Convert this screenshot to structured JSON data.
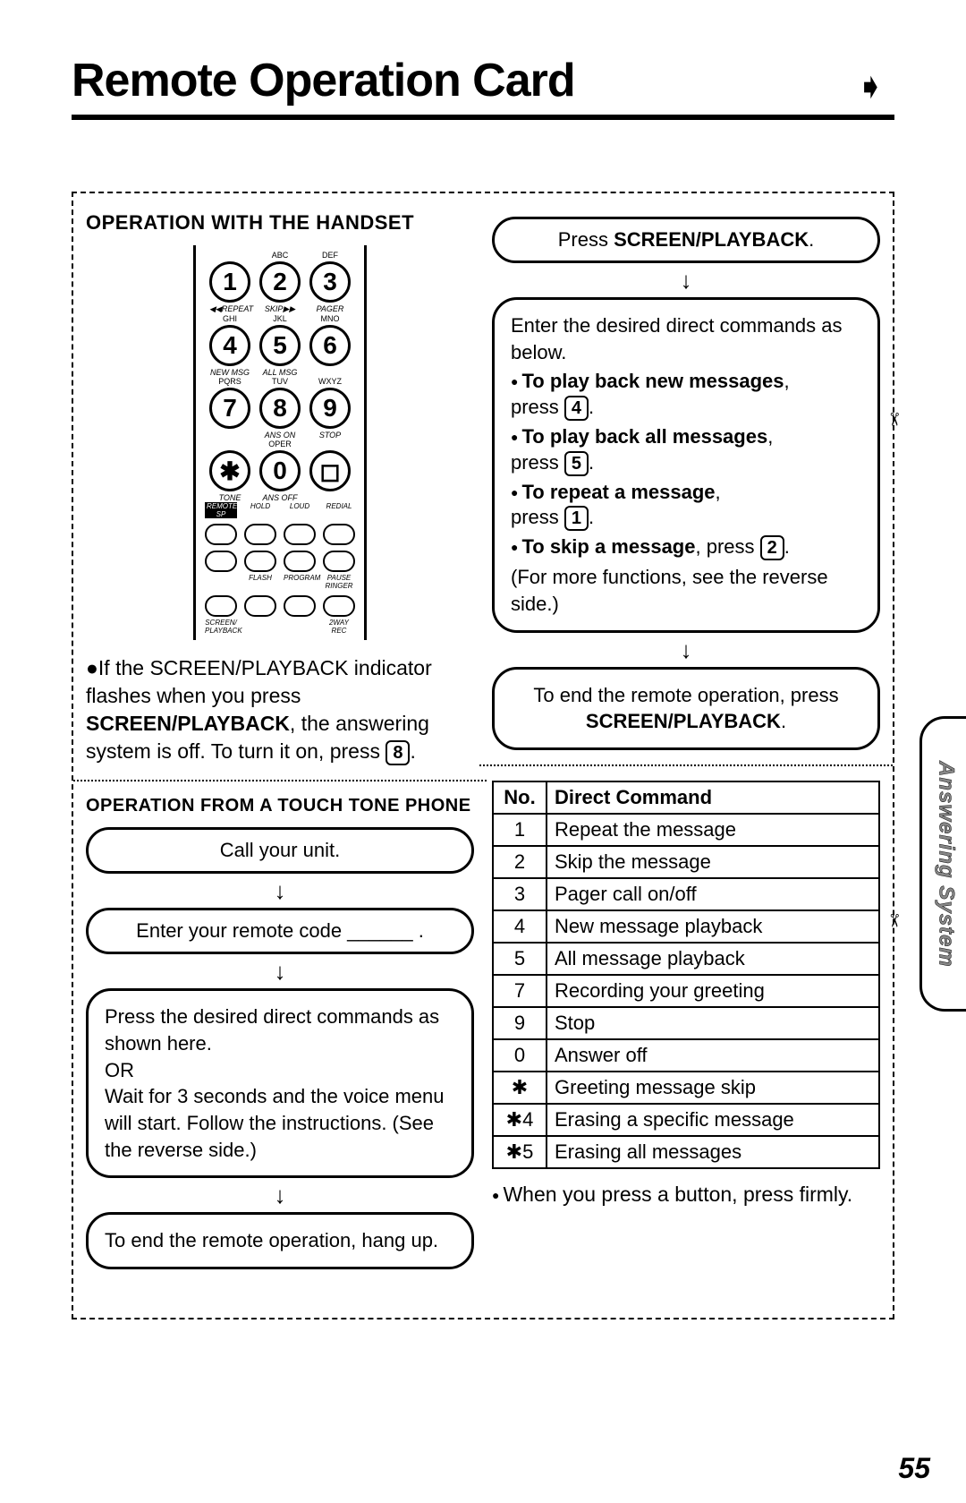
{
  "header": {
    "title": "Remote Operation Card"
  },
  "left": {
    "handset": {
      "heading": "OPERATION WITH THE HANDSET",
      "keypad": {
        "row1_top": [
          "",
          "ABC",
          "DEF"
        ],
        "row1": [
          "1",
          "2",
          "3"
        ],
        "row1_labels": [
          "◀◀REPEAT",
          "SKIP▶▶",
          "PAGER"
        ],
        "row2_top": [
          "GHI",
          "JKL",
          "MNO"
        ],
        "row2": [
          "4",
          "5",
          "6"
        ],
        "row2_labels": [
          "NEW MSG",
          "ALL MSG",
          ""
        ],
        "row3_top": [
          "PQRS",
          "TUV",
          "WXYZ"
        ],
        "row3": [
          "7",
          "8",
          "9"
        ],
        "row3_labels": [
          "",
          "ANS ON",
          "STOP"
        ],
        "row4_top": [
          "",
          "OPER",
          ""
        ],
        "row4": [
          "✱",
          "0",
          "◻"
        ],
        "row4_labels": [
          "TONE",
          "ANS OFF",
          ""
        ],
        "btnrow1_labels": [
          "REMOTE SP",
          "HOLD",
          "LOUD",
          "REDIAL"
        ],
        "btnrow2_labels": [
          "",
          "FLASH",
          "PROGRAM",
          "PAUSE RINGER"
        ],
        "btnrow3_labels": [
          "SCREEN/ PLAYBACK",
          "",
          "",
          "2WAY REC"
        ]
      },
      "note_pre": "If the SCREEN/PLAYBACK indicator flashes when you press ",
      "note_bold": "SCREEN/PLAYBACK",
      "note_mid": ", the answering system is off. To turn it on, press ",
      "note_key": "8",
      "note_post": "."
    },
    "touchtone": {
      "heading": "OPERATION FROM A TOUCH TONE PHONE",
      "step1": "Call your unit.",
      "step2": "Enter your remote code ______ .",
      "step3": "Press the desired direct commands as shown here.\nOR\nWait for 3 seconds and the voice menu will start. Follow the instructions. (See the reverse side.)",
      "step4": "To end the remote operation, hang up."
    }
  },
  "right": {
    "step1_pre": "Press ",
    "step1_bold": "SCREEN/PLAYBACK",
    "step1_post": ".",
    "box_intro": "Enter the desired direct commands as below.",
    "items": [
      {
        "bold": "To play back new messages",
        "key": "4"
      },
      {
        "bold": "To play back all messages",
        "key": "5"
      },
      {
        "bold": "To repeat a message",
        "key": "1"
      },
      {
        "bold": "To skip a message",
        "key": "2",
        "inline": true
      }
    ],
    "box_tail": "(For more functions, see the reverse side.)",
    "end_pre": "To end the remote operation, press ",
    "end_bold": "SCREEN/PLAYBACK",
    "end_post": ".",
    "table": {
      "head_no": "No.",
      "head_cmd": "Direct Command",
      "rows": [
        [
          "1",
          "Repeat the message"
        ],
        [
          "2",
          "Skip the message"
        ],
        [
          "3",
          "Pager call on/off"
        ],
        [
          "4",
          "New message playback"
        ],
        [
          "5",
          "All message playback"
        ],
        [
          "7",
          "Recording your greeting"
        ],
        [
          "9",
          "Stop"
        ],
        [
          "0",
          "Answer off"
        ],
        [
          "✱",
          "Greeting message skip"
        ],
        [
          "✱4",
          "Erasing a specific message"
        ],
        [
          "✱5",
          "Erasing all messages"
        ]
      ]
    },
    "footnote": "When you press a button, press firmly."
  },
  "sidetab": "Answering System",
  "page": "55"
}
